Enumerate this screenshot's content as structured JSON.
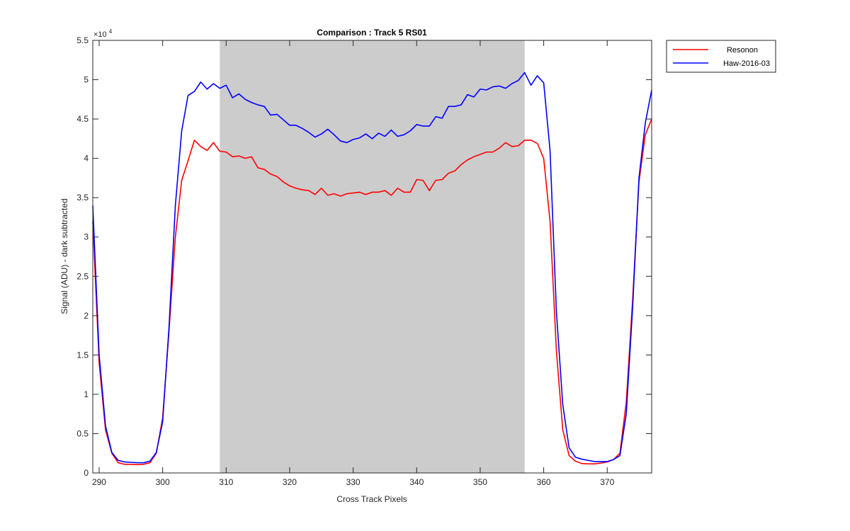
{
  "chart_data": {
    "type": "line",
    "title": "Comparison : Track 5  RS01",
    "xlabel": "Cross Track Pixels",
    "ylabel": "Signal (ADU) - dark subtracted",
    "y_exponent_label": "×10",
    "y_exponent": "4",
    "xlim": [
      289,
      377
    ],
    "ylim": [
      0,
      55000
    ],
    "x_ticks": [
      290,
      300,
      310,
      320,
      330,
      340,
      350,
      360,
      370
    ],
    "y_ticks": [
      0,
      5000,
      10000,
      15000,
      20000,
      25000,
      30000,
      35000,
      40000,
      45000,
      50000,
      55000
    ],
    "y_tick_labels": [
      "0",
      "0.5",
      "1",
      "1.5",
      "2",
      "2.5",
      "3",
      "3.5",
      "4",
      "4.5",
      "5",
      "5.5"
    ],
    "shaded_region": {
      "x_start": 309,
      "x_end": 357,
      "color": "#cccccc"
    },
    "grid": false,
    "legend_position": "outside-top-right",
    "x": [
      289,
      290,
      291,
      292,
      293,
      294,
      295,
      296,
      297,
      298,
      299,
      300,
      301,
      302,
      303,
      304,
      305,
      306,
      307,
      308,
      309,
      310,
      311,
      312,
      313,
      314,
      315,
      316,
      317,
      318,
      319,
      320,
      321,
      322,
      323,
      324,
      325,
      326,
      327,
      328,
      329,
      330,
      331,
      332,
      333,
      334,
      335,
      336,
      337,
      338,
      339,
      340,
      341,
      342,
      343,
      344,
      345,
      346,
      347,
      348,
      349,
      350,
      351,
      352,
      353,
      354,
      355,
      356,
      357,
      358,
      359,
      360,
      361,
      362,
      363,
      364,
      365,
      366,
      367,
      368,
      369,
      370,
      371,
      372,
      373,
      374,
      375,
      376,
      377
    ],
    "series": [
      {
        "name": "Resonon",
        "color": "#ff0000",
        "values": [
          32000,
          14000,
          5500,
          2500,
          1300,
          1100,
          1100,
          1050,
          1100,
          1300,
          2500,
          7000,
          18000,
          30000,
          37200,
          39700,
          42300,
          41500,
          41000,
          42000,
          40900,
          40800,
          40200,
          40300,
          40000,
          40200,
          38800,
          38600,
          38000,
          37700,
          37000,
          36500,
          36200,
          36000,
          35900,
          35400,
          36200,
          35300,
          35500,
          35200,
          35500,
          35600,
          35700,
          35400,
          35700,
          35700,
          35900,
          35300,
          36200,
          35700,
          35700,
          37300,
          37200,
          35900,
          37200,
          37300,
          38100,
          38400,
          39200,
          39800,
          40200,
          40500,
          40800,
          40800,
          41300,
          42000,
          41500,
          41600,
          42300,
          42300,
          41900,
          40000,
          32000,
          15500,
          5500,
          2200,
          1500,
          1200,
          1150,
          1150,
          1250,
          1400,
          1700,
          2500,
          9000,
          22000,
          37000,
          43000,
          45000
        ]
      },
      {
        "name": "Haw-2016-03",
        "color": "#0000ff",
        "values": [
          34000,
          15000,
          6000,
          2600,
          1600,
          1400,
          1350,
          1300,
          1300,
          1500,
          2600,
          6500,
          18500,
          34000,
          43500,
          48000,
          48500,
          49700,
          48800,
          49500,
          48900,
          49300,
          47700,
          48200,
          47500,
          47100,
          46800,
          46600,
          45500,
          45600,
          44900,
          44200,
          44200,
          43800,
          43300,
          42700,
          43100,
          43700,
          43000,
          42200,
          42000,
          42400,
          42600,
          43100,
          42500,
          43200,
          42800,
          43600,
          42800,
          43000,
          43500,
          44300,
          44100,
          44100,
          45300,
          45100,
          46600,
          46600,
          46800,
          48100,
          47800,
          48800,
          48700,
          49100,
          49200,
          48900,
          49500,
          49900,
          50900,
          49300,
          50500,
          49600,
          41000,
          20500,
          8700,
          3200,
          2000,
          1750,
          1600,
          1450,
          1450,
          1450,
          1700,
          2200,
          7500,
          21000,
          37500,
          44500,
          48700
        ]
      }
    ]
  }
}
